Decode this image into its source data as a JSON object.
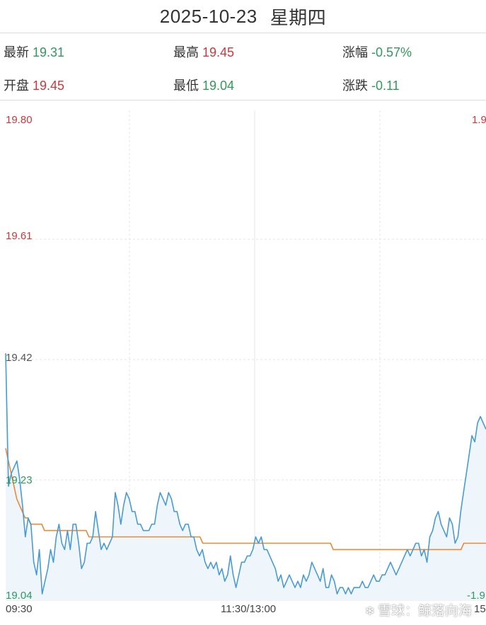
{
  "header": {
    "date": "2025-10-23",
    "weekday": "星期四"
  },
  "stats": {
    "latest": {
      "label": "最新",
      "value": "19.31"
    },
    "high": {
      "label": "最高",
      "value": "19.45"
    },
    "change_pct": {
      "label": "涨幅",
      "value": "-0.57%"
    },
    "open": {
      "label": "开盘",
      "value": "19.45"
    },
    "low": {
      "label": "最低",
      "value": "19.04"
    },
    "change": {
      "label": "涨跌",
      "value": "-0.11"
    }
  },
  "colors": {
    "up": "#d0373d",
    "down": "#2e9a5b",
    "price_line": "#4a9bd4",
    "avg_line": "#e88a35",
    "area_fill": "#eef6fc",
    "grid": "#e6e6e6"
  },
  "watermark": {
    "icon": "xueqiu-snowball-icon",
    "text": "雪球：鲸落向海"
  },
  "chart_data": {
    "type": "line",
    "title": "",
    "xlabel": "",
    "ylabel": "",
    "ylim": [
      19.04,
      19.8
    ],
    "y_ticks_left": [
      "19.80",
      "19.61",
      "19.42",
      "19.23",
      "19.04"
    ],
    "y_ticks_right_visible": [
      "1.9",
      "-1.9"
    ],
    "x_ticks": [
      "09:30",
      "11:30/13:00",
      "15"
    ],
    "grid": true,
    "series": [
      {
        "key": "price",
        "values": [
          19.43,
          19.22,
          19.24,
          19.25,
          19.26,
          19.23,
          19.19,
          19.14,
          19.17,
          19.16,
          19.1,
          19.08,
          19.12,
          19.05,
          19.07,
          19.09,
          19.12,
          19.1,
          19.14,
          19.16,
          19.13,
          19.12,
          19.15,
          19.12,
          19.16,
          19.16,
          19.13,
          19.09,
          19.1,
          19.13,
          19.13,
          19.14,
          19.18,
          19.15,
          19.12,
          19.13,
          19.12,
          19.13,
          19.14,
          19.21,
          19.19,
          19.16,
          19.19,
          19.21,
          19.2,
          19.18,
          19.18,
          19.16,
          19.16,
          19.15,
          19.15,
          19.15,
          19.16,
          19.16,
          19.19,
          19.21,
          19.2,
          19.19,
          19.21,
          19.2,
          19.18,
          19.18,
          19.16,
          19.15,
          19.16,
          19.16,
          19.14,
          19.14,
          19.12,
          19.11,
          19.12,
          19.1,
          19.09,
          19.1,
          19.09,
          19.1,
          19.08,
          19.09,
          19.07,
          19.08,
          19.11,
          19.08,
          19.06,
          19.08,
          19.1,
          19.1,
          19.11,
          19.11,
          19.12,
          19.14,
          19.13,
          19.14,
          19.12,
          19.12,
          19.11,
          19.1,
          19.09,
          19.07,
          19.08,
          19.06,
          19.07,
          19.08,
          19.07,
          19.06,
          19.07,
          19.06,
          19.08,
          19.07,
          19.08,
          19.1,
          19.09,
          19.08,
          19.07,
          19.09,
          19.06,
          19.06,
          19.08,
          19.07,
          19.05,
          19.06,
          19.06,
          19.05,
          19.06,
          19.05,
          19.06,
          19.06,
          19.06,
          19.07,
          19.06,
          19.06,
          19.07,
          19.08,
          19.07,
          19.07,
          19.08,
          19.08,
          19.09,
          19.1,
          19.09,
          19.08,
          19.09,
          19.1,
          19.11,
          19.12,
          19.11,
          19.12,
          19.13,
          19.13,
          19.11,
          19.12,
          19.1,
          19.14,
          19.15,
          19.17,
          19.18,
          19.16,
          19.15,
          19.14,
          19.17,
          19.16,
          19.13,
          19.14,
          19.18,
          19.21,
          19.24,
          19.27,
          19.3,
          19.29,
          19.32,
          19.33,
          19.32,
          19.31
        ],
        "color": "#4a9bd4"
      },
      {
        "key": "average",
        "values": [
          19.28,
          19.26,
          19.24,
          19.22,
          19.2,
          19.19,
          19.18,
          19.17,
          19.17,
          19.16,
          19.16,
          19.16,
          19.16,
          19.16,
          19.15,
          19.15,
          19.15,
          19.15,
          19.15,
          19.15,
          19.15,
          19.15,
          19.15,
          19.15,
          19.15,
          19.15,
          19.15,
          19.15,
          19.15,
          19.15,
          19.14,
          19.14,
          19.14,
          19.14,
          19.14,
          19.14,
          19.14,
          19.14,
          19.14,
          19.14,
          19.14,
          19.14,
          19.14,
          19.14,
          19.14,
          19.14,
          19.14,
          19.14,
          19.14,
          19.14,
          19.14,
          19.14,
          19.14,
          19.14,
          19.14,
          19.14,
          19.14,
          19.14,
          19.14,
          19.14,
          19.14,
          19.14,
          19.14,
          19.14,
          19.14,
          19.14,
          19.14,
          19.14,
          19.14,
          19.14,
          19.14,
          19.13,
          19.13,
          19.13,
          19.13,
          19.13,
          19.13,
          19.13,
          19.13,
          19.13,
          19.13,
          19.13,
          19.13,
          19.13,
          19.13,
          19.13,
          19.13,
          19.13,
          19.13,
          19.13,
          19.13,
          19.13,
          19.13,
          19.13,
          19.13,
          19.13,
          19.13,
          19.13,
          19.13,
          19.13,
          19.13,
          19.13,
          19.13,
          19.13,
          19.13,
          19.13,
          19.13,
          19.13,
          19.13,
          19.13,
          19.13,
          19.13,
          19.13,
          19.13,
          19.13,
          19.13,
          19.13,
          19.13,
          19.12,
          19.12,
          19.12,
          19.12,
          19.12,
          19.12,
          19.12,
          19.12,
          19.12,
          19.12,
          19.12,
          19.12,
          19.12,
          19.12,
          19.12,
          19.12,
          19.12,
          19.12,
          19.12,
          19.12,
          19.12,
          19.12,
          19.12,
          19.12,
          19.12,
          19.12,
          19.12,
          19.12,
          19.12,
          19.12,
          19.12,
          19.12,
          19.12,
          19.12,
          19.12,
          19.12,
          19.12,
          19.12,
          19.12,
          19.12,
          19.12,
          19.12,
          19.12,
          19.12,
          19.12,
          19.12,
          19.12,
          19.13,
          19.13,
          19.13,
          19.13,
          19.13,
          19.13,
          19.13,
          19.13,
          19.13
        ],
        "color": "#e88a35"
      }
    ]
  }
}
